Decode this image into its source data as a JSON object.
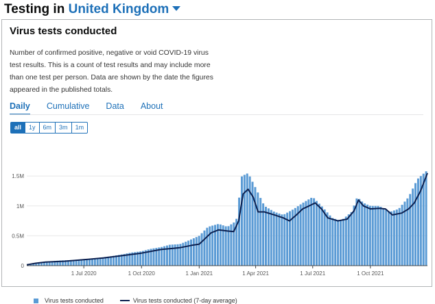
{
  "header": {
    "prefix": "Testing in",
    "nation": "United Kingdom"
  },
  "card": {
    "title": "Virus tests conducted",
    "description": "Number of confirmed positive, negative or void COVID-19 virus test results. This is a count of test results and may include more than one test per person. Data are shown by the date the figures appeared in the published totals."
  },
  "tabs": [
    "Daily",
    "Cumulative",
    "Data",
    "About"
  ],
  "ranges": [
    "all",
    "1y",
    "6m",
    "3m",
    "1m"
  ],
  "colors": {
    "bar": "#5b9bd5",
    "line": "#0b1f4f",
    "link": "#1d70b8"
  },
  "chart_data": {
    "type": "bar",
    "title": "Virus tests conducted",
    "x_start": "2020-04-01",
    "x_end": "2021-12-31",
    "ylim": [
      0,
      1800000
    ],
    "y_ticks": [
      0,
      500000,
      1000000,
      1500000
    ],
    "y_tick_labels": [
      "0",
      "0.5M",
      "1M",
      "1.5M"
    ],
    "x_ticks": [
      "2020-07-01",
      "2020-10-01",
      "2021-01-01",
      "2021-04-01",
      "2021-07-01",
      "2021-10-01"
    ],
    "x_tick_labels": [
      "1 Jul 2020",
      "1 Oct 2020",
      "1 Jan 2021",
      "1 Apr 2021",
      "1 Jul 2021",
      "1 Oct 2021"
    ],
    "series": [
      {
        "name": "Virus tests conducted",
        "kind": "bar",
        "points": [
          [
            "2020-04-01",
            20000
          ],
          [
            "2020-04-15",
            30000
          ],
          [
            "2020-05-01",
            60000
          ],
          [
            "2020-05-15",
            80000
          ],
          [
            "2020-06-01",
            90000
          ],
          [
            "2020-06-15",
            95000
          ],
          [
            "2020-07-01",
            110000
          ],
          [
            "2020-07-15",
            120000
          ],
          [
            "2020-08-01",
            140000
          ],
          [
            "2020-08-15",
            160000
          ],
          [
            "2020-09-01",
            190000
          ],
          [
            "2020-09-15",
            220000
          ],
          [
            "2020-10-01",
            240000
          ],
          [
            "2020-10-15",
            280000
          ],
          [
            "2020-11-01",
            310000
          ],
          [
            "2020-11-15",
            350000
          ],
          [
            "2020-12-01",
            360000
          ],
          [
            "2020-12-15",
            420000
          ],
          [
            "2021-01-01",
            500000
          ],
          [
            "2021-01-15",
            650000
          ],
          [
            "2021-02-01",
            700000
          ],
          [
            "2021-02-15",
            650000
          ],
          [
            "2021-03-01",
            750000
          ],
          [
            "2021-03-10",
            1500000
          ],
          [
            "2021-03-20",
            1550000
          ],
          [
            "2021-04-01",
            1300000
          ],
          [
            "2021-04-15",
            1000000
          ],
          [
            "2021-05-01",
            900000
          ],
          [
            "2021-05-15",
            850000
          ],
          [
            "2021-06-01",
            950000
          ],
          [
            "2021-06-15",
            1050000
          ],
          [
            "2021-07-01",
            1150000
          ],
          [
            "2021-07-15",
            1000000
          ],
          [
            "2021-08-01",
            800000
          ],
          [
            "2021-08-15",
            750000
          ],
          [
            "2021-09-01",
            900000
          ],
          [
            "2021-09-10",
            1150000
          ],
          [
            "2021-09-20",
            1050000
          ],
          [
            "2021-10-01",
            1000000
          ],
          [
            "2021-10-15",
            1000000
          ],
          [
            "2021-11-01",
            900000
          ],
          [
            "2021-11-15",
            950000
          ],
          [
            "2021-12-01",
            1150000
          ],
          [
            "2021-12-15",
            1450000
          ],
          [
            "2021-12-31",
            1600000
          ]
        ]
      },
      {
        "name": "Virus tests conducted (7-day average)",
        "kind": "line",
        "points": [
          [
            "2020-04-01",
            15000
          ],
          [
            "2020-04-15",
            40000
          ],
          [
            "2020-05-01",
            60000
          ],
          [
            "2020-06-01",
            75000
          ],
          [
            "2020-07-01",
            100000
          ],
          [
            "2020-08-01",
            130000
          ],
          [
            "2020-09-01",
            170000
          ],
          [
            "2020-10-01",
            210000
          ],
          [
            "2020-11-01",
            270000
          ],
          [
            "2020-12-01",
            300000
          ],
          [
            "2020-12-20",
            340000
          ],
          [
            "2021-01-01",
            360000
          ],
          [
            "2021-01-10",
            450000
          ],
          [
            "2021-01-20",
            550000
          ],
          [
            "2021-02-01",
            600000
          ],
          [
            "2021-02-15",
            580000
          ],
          [
            "2021-02-25",
            570000
          ],
          [
            "2021-03-05",
            750000
          ],
          [
            "2021-03-12",
            1200000
          ],
          [
            "2021-03-20",
            1280000
          ],
          [
            "2021-03-28",
            1150000
          ],
          [
            "2021-04-05",
            900000
          ],
          [
            "2021-04-15",
            900000
          ],
          [
            "2021-05-01",
            850000
          ],
          [
            "2021-05-15",
            800000
          ],
          [
            "2021-05-25",
            750000
          ],
          [
            "2021-06-05",
            850000
          ],
          [
            "2021-06-15",
            950000
          ],
          [
            "2021-06-25",
            1000000
          ],
          [
            "2021-07-05",
            1050000
          ],
          [
            "2021-07-15",
            950000
          ],
          [
            "2021-07-25",
            800000
          ],
          [
            "2021-08-10",
            750000
          ],
          [
            "2021-08-25",
            780000
          ],
          [
            "2021-09-05",
            920000
          ],
          [
            "2021-09-12",
            1100000
          ],
          [
            "2021-09-20",
            1000000
          ],
          [
            "2021-10-01",
            950000
          ],
          [
            "2021-10-15",
            960000
          ],
          [
            "2021-10-25",
            950000
          ],
          [
            "2021-11-05",
            850000
          ],
          [
            "2021-11-20",
            880000
          ],
          [
            "2021-12-01",
            950000
          ],
          [
            "2021-12-10",
            1050000
          ],
          [
            "2021-12-20",
            1250000
          ],
          [
            "2021-12-31",
            1550000
          ]
        ]
      }
    ],
    "legend": [
      "Virus tests conducted",
      "Virus tests conducted (7-day average)"
    ]
  }
}
